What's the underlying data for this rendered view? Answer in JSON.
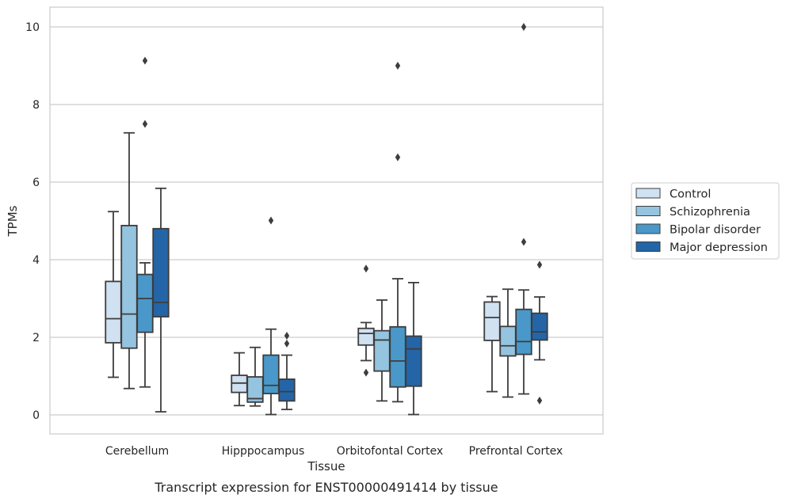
{
  "chart_data": {
    "type": "box",
    "title": "",
    "caption": "Transcript expression for ENST00000491414 by tissue",
    "xlabel": "Tissue",
    "ylabel": "TPMs",
    "ylim": [
      -0.5,
      10.5
    ],
    "yticks": [
      0,
      2,
      4,
      6,
      8,
      10
    ],
    "grid": "horizontal",
    "legend_position": "right",
    "categories": [
      "Cerebellum",
      "Hipppocampus",
      "Orbitofontal Cortex",
      "Prefrontal Cortex"
    ],
    "series": [
      {
        "name": "Control",
        "color": "#d0e1f2",
        "boxes": [
          {
            "whislo": 0.97,
            "q1": 1.86,
            "med": 2.48,
            "q3": 3.44,
            "whishi": 5.24,
            "fliers": []
          },
          {
            "whislo": 0.24,
            "q1": 0.58,
            "med": 0.82,
            "q3": 1.02,
            "whishi": 1.6,
            "fliers": []
          },
          {
            "whislo": 1.4,
            "q1": 1.8,
            "med": 2.1,
            "q3": 2.23,
            "whishi": 2.38,
            "fliers": [
              3.77,
              1.09
            ]
          },
          {
            "whislo": 0.6,
            "q1": 1.92,
            "med": 2.51,
            "q3": 2.91,
            "whishi": 3.05,
            "fliers": []
          }
        ]
      },
      {
        "name": "Schizophrenia",
        "color": "#94c4df",
        "boxes": [
          {
            "whislo": 0.68,
            "q1": 1.72,
            "med": 2.6,
            "q3": 4.88,
            "whishi": 7.27,
            "fliers": []
          },
          {
            "whislo": 0.23,
            "q1": 0.33,
            "med": 0.42,
            "q3": 0.98,
            "whishi": 1.74,
            "fliers": []
          },
          {
            "whislo": 0.36,
            "q1": 1.13,
            "med": 1.93,
            "q3": 2.17,
            "whishi": 2.96,
            "fliers": []
          },
          {
            "whislo": 0.46,
            "q1": 1.52,
            "med": 1.78,
            "q3": 2.28,
            "whishi": 3.24,
            "fliers": []
          }
        ]
      },
      {
        "name": "Bipolar disorder",
        "color": "#4a98c9",
        "boxes": [
          {
            "whislo": 0.72,
            "q1": 2.13,
            "med": 3.0,
            "q3": 3.62,
            "whishi": 3.92,
            "fliers": [
              9.13,
              7.5
            ]
          },
          {
            "whislo": 0.01,
            "q1": 0.55,
            "med": 0.76,
            "q3": 1.54,
            "whishi": 2.21,
            "fliers": [
              5.01
            ]
          },
          {
            "whislo": 0.34,
            "q1": 0.72,
            "med": 1.39,
            "q3": 2.27,
            "whishi": 3.51,
            "fliers": [
              9.0,
              6.64
            ]
          },
          {
            "whislo": 0.54,
            "q1": 1.56,
            "med": 1.89,
            "q3": 2.72,
            "whishi": 3.22,
            "fliers": [
              10.0,
              4.46
            ]
          }
        ]
      },
      {
        "name": "Major depression",
        "color": "#2465a8",
        "boxes": [
          {
            "whislo": 0.08,
            "q1": 2.53,
            "med": 2.9,
            "q3": 4.8,
            "whishi": 5.84,
            "fliers": []
          },
          {
            "whislo": 0.14,
            "q1": 0.36,
            "med": 0.6,
            "q3": 0.92,
            "whishi": 1.54,
            "fliers": [
              2.04,
              1.84
            ]
          },
          {
            "whislo": 0.01,
            "q1": 0.74,
            "med": 1.7,
            "q3": 2.03,
            "whishi": 3.41,
            "fliers": []
          },
          {
            "whislo": 1.42,
            "q1": 1.93,
            "med": 2.14,
            "q3": 2.62,
            "whishi": 3.04,
            "fliers": [
              3.87,
              0.37
            ]
          }
        ]
      }
    ]
  }
}
